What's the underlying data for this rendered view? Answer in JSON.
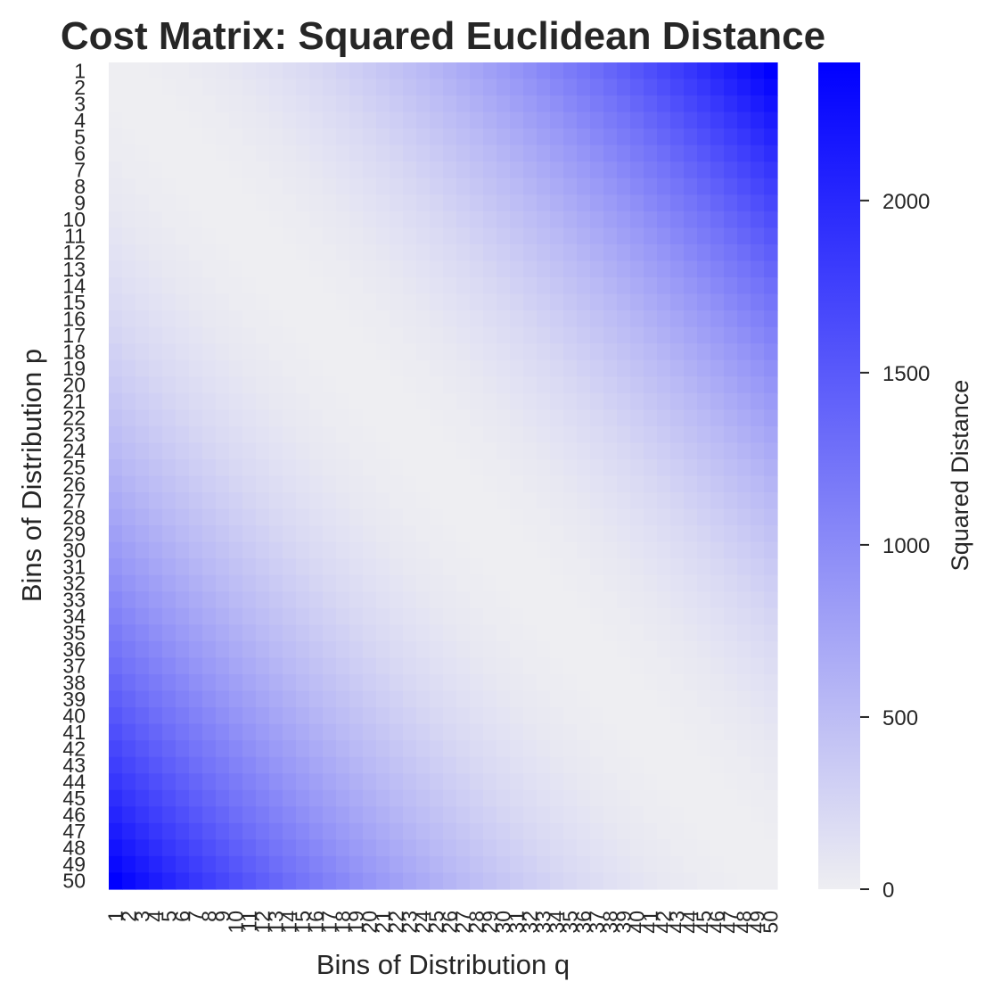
{
  "chart_data": {
    "type": "heatmap",
    "title": "Cost Matrix: Squared Euclidean Distance",
    "xlabel": "Bins of Distribution q",
    "ylabel": "Bins of Distribution p",
    "x_ticklabels": [
      "1",
      "2",
      "3",
      "4",
      "5",
      "6",
      "7",
      "8",
      "9",
      "10",
      "11",
      "12",
      "13",
      "14",
      "15",
      "16",
      "17",
      "18",
      "19",
      "20",
      "21",
      "22",
      "23",
      "24",
      "25",
      "26",
      "27",
      "28",
      "29",
      "30",
      "31",
      "32",
      "33",
      "34",
      "35",
      "36",
      "37",
      "38",
      "39",
      "40",
      "41",
      "42",
      "43",
      "44",
      "45",
      "46",
      "47",
      "48",
      "49",
      "50"
    ],
    "y_ticklabels": [
      "1",
      "2",
      "3",
      "4",
      "5",
      "6",
      "7",
      "8",
      "9",
      "10",
      "11",
      "12",
      "13",
      "14",
      "15",
      "16",
      "17",
      "18",
      "19",
      "20",
      "21",
      "22",
      "23",
      "24",
      "25",
      "26",
      "27",
      "28",
      "29",
      "30",
      "31",
      "32",
      "33",
      "34",
      "35",
      "36",
      "37",
      "38",
      "39",
      "40",
      "41",
      "42",
      "43",
      "44",
      "45",
      "46",
      "47",
      "48",
      "49",
      "50"
    ],
    "value_formula": "(p - q)^2",
    "vmin": 0,
    "vmax": 2401,
    "colormap": {
      "low": "#eeeef2",
      "high": "#0000ff"
    },
    "colorbar": {
      "label": "Squared Distance",
      "ticks": [
        0,
        500,
        1000,
        1500,
        2000
      ],
      "tick_labels": [
        "0",
        "500",
        "1000",
        "1500",
        "2000"
      ]
    },
    "grid": false,
    "legend": "colorbar-right"
  }
}
